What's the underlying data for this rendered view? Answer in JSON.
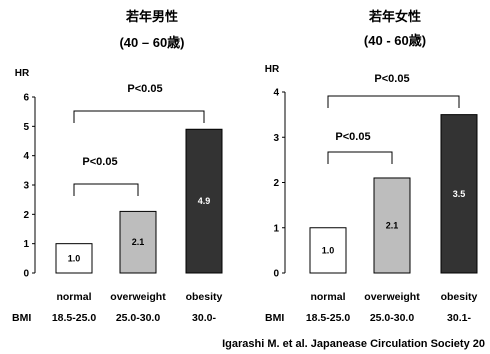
{
  "chart_data": [
    {
      "type": "bar",
      "title": "若年男性",
      "subtitle": "(40 – 60歳)",
      "ylabel": "HR",
      "ylim": [
        0,
        6
      ],
      "yticks": [
        "0",
        "1",
        "2",
        "3",
        "4",
        "5",
        "6"
      ],
      "categories": [
        "normal",
        "overweight",
        "obesity"
      ],
      "values": [
        1.0,
        2.1,
        4.9
      ],
      "value_labels": [
        "1.0",
        "2.1",
        "4.9"
      ],
      "bmi_label": "BMI",
      "bmi_ranges": [
        "18.5-25.0",
        "25.0-30.0",
        "30.0-"
      ],
      "bar_colors": [
        "#ffffff",
        "#bdbdbd",
        "#333333"
      ],
      "significance": [
        {
          "text": "P<0.05",
          "from": "normal",
          "to": "overweight"
        },
        {
          "text": "P<0.05",
          "from": "normal",
          "to": "obesity"
        }
      ]
    },
    {
      "type": "bar",
      "title": "若年女性",
      "subtitle": "(40 - 60歳)",
      "ylabel": "HR",
      "ylim": [
        0,
        4
      ],
      "yticks": [
        "0",
        "1",
        "2",
        "3",
        "4"
      ],
      "categories": [
        "normal",
        "overweight",
        "obesity"
      ],
      "values": [
        1.0,
        2.1,
        3.5
      ],
      "value_labels": [
        "1.0",
        "2.1",
        "3.5"
      ],
      "bmi_label": "BMI",
      "bmi_ranges": [
        "18.5-25.0",
        "25.0-30.0",
        "30.1-"
      ],
      "bar_colors": [
        "#ffffff",
        "#bdbdbd",
        "#333333"
      ],
      "significance": [
        {
          "text": "P<0.05",
          "from": "normal",
          "to": "overweight"
        },
        {
          "text": "P<0.05",
          "from": "normal",
          "to": "obesity"
        }
      ]
    }
  ],
  "citation": "Igarashi M. et al. Japanease Circulation Society 20"
}
